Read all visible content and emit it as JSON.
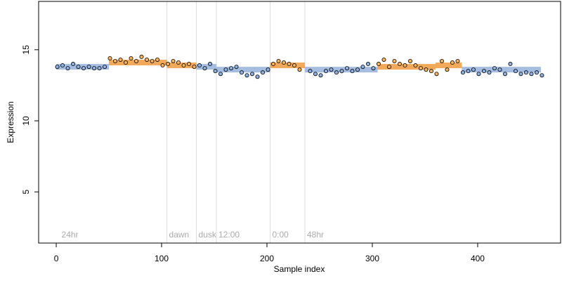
{
  "chart_data": {
    "type": "scatter",
    "xlabel": "Sample index",
    "ylabel": "Expression",
    "xlim": [
      -16.7,
      478.7
    ],
    "ylim": [
      1.4,
      18.4
    ],
    "xticks": [
      0,
      100,
      200,
      300,
      400
    ],
    "yticks": [
      5,
      10,
      15
    ],
    "annotations": [
      {
        "x": 3,
        "label": "24hr",
        "line": false
      },
      {
        "x": 105,
        "label": "dawn",
        "line": true
      },
      {
        "x": 133,
        "label": "dusk",
        "line": true
      },
      {
        "x": 152,
        "label": "12:00",
        "line": true
      },
      {
        "x": 203,
        "label": "0:00",
        "line": true
      },
      {
        "x": 236,
        "label": "48hr",
        "line": true
      }
    ],
    "segments": [
      {
        "x0": 0,
        "x1": 50,
        "y": 13.8,
        "color": "#a4bde0"
      },
      {
        "x0": 50,
        "x1": 105,
        "y": 14.1,
        "color": "#f2a95a"
      },
      {
        "x0": 105,
        "x1": 133,
        "y": 13.9,
        "color": "#f2a95a"
      },
      {
        "x0": 133,
        "x1": 152,
        "y": 13.8,
        "color": "#a4bde0"
      },
      {
        "x0": 152,
        "x1": 203,
        "y": 13.6,
        "color": "#a4bde0"
      },
      {
        "x0": 203,
        "x1": 236,
        "y": 13.9,
        "color": "#f2a95a"
      },
      {
        "x0": 236,
        "x1": 305,
        "y": 13.6,
        "color": "#a4bde0"
      },
      {
        "x0": 305,
        "x1": 360,
        "y": 13.8,
        "color": "#f2a95a"
      },
      {
        "x0": 360,
        "x1": 385,
        "y": 13.9,
        "color": "#f2a95a"
      },
      {
        "x0": 385,
        "x1": 460,
        "y": 13.6,
        "color": "#a4bde0"
      }
    ],
    "series": [
      {
        "color": "#8fb0e0",
        "x": [
          1,
          6,
          11,
          16,
          21,
          26,
          31,
          36,
          41,
          46,
          136,
          141,
          146,
          151,
          156,
          161,
          166,
          171,
          176,
          181,
          186,
          191,
          196,
          201,
          241,
          246,
          251,
          256,
          261,
          266,
          271,
          276,
          281,
          286,
          291,
          296,
          301,
          386,
          391,
          396,
          401,
          406,
          411,
          416,
          421,
          426,
          431,
          436,
          441,
          446,
          451,
          456,
          461
        ],
        "values": [
          13.8,
          13.9,
          13.7,
          14.0,
          13.8,
          13.7,
          13.8,
          13.7,
          13.7,
          13.8,
          13.9,
          13.7,
          14.0,
          13.5,
          13.3,
          13.6,
          13.7,
          13.8,
          13.4,
          13.2,
          13.3,
          13.1,
          13.4,
          13.6,
          13.5,
          13.3,
          13.2,
          13.5,
          13.6,
          13.4,
          13.5,
          13.7,
          13.5,
          13.6,
          13.8,
          14.0,
          13.7,
          13.4,
          13.5,
          13.6,
          13.3,
          13.5,
          13.4,
          13.7,
          13.6,
          13.3,
          14.0,
          13.5,
          13.3,
          13.4,
          13.3,
          13.4,
          13.2
        ]
      },
      {
        "color": "#f7b35c",
        "x": [
          51,
          56,
          61,
          66,
          71,
          76,
          81,
          86,
          91,
          96,
          101,
          106,
          111,
          116,
          121,
          126,
          131,
          206,
          211,
          216,
          221,
          226,
          231,
          306,
          311,
          316,
          321,
          326,
          331,
          336,
          341,
          346,
          351,
          356,
          361,
          366,
          371,
          376,
          381
        ],
        "values": [
          14.4,
          14.2,
          14.3,
          14.1,
          14.4,
          14.2,
          14.5,
          14.3,
          14.2,
          14.3,
          13.9,
          14.0,
          14.2,
          14.1,
          13.9,
          14.0,
          13.8,
          14.0,
          14.2,
          14.1,
          14.0,
          13.9,
          13.6,
          14.0,
          14.3,
          13.8,
          14.2,
          14.0,
          13.9,
          14.2,
          13.9,
          13.7,
          13.6,
          13.5,
          13.3,
          14.2,
          13.6,
          14.1,
          14.2
        ]
      }
    ]
  }
}
